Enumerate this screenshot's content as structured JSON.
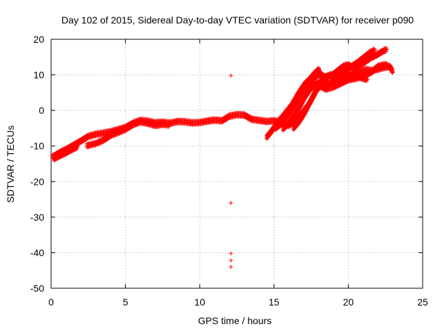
{
  "chart_data": {
    "type": "scatter",
    "title": "Day 102 of 2015, Sidereal Day-to-day VTEC variation (SDTVAR) for receiver p090",
    "xlabel": "GPS time / hours",
    "ylabel": "SDTVAR / TECUs",
    "xlim": [
      0,
      25
    ],
    "ylim": [
      -50,
      20
    ],
    "xticks": [
      0,
      5,
      10,
      15,
      20,
      25
    ],
    "yticks": [
      -50,
      -40,
      -30,
      -20,
      -10,
      0,
      10,
      20
    ],
    "grid": true,
    "marker": "+",
    "color": "#ff0000",
    "tracks": [
      [
        [
          0.1,
          -13.0
        ],
        [
          0.3,
          -12.6
        ],
        [
          0.6,
          -11.8
        ],
        [
          1.0,
          -11.0
        ],
        [
          1.5,
          -9.8
        ],
        [
          2.0,
          -8.6
        ],
        [
          2.5,
          -7.3
        ],
        [
          3.0,
          -6.7
        ],
        [
          3.5,
          -6.4
        ],
        [
          4.0,
          -6.0
        ],
        [
          4.5,
          -5.4
        ],
        [
          5.0,
          -4.8
        ],
        [
          5.5,
          -3.6
        ],
        [
          6.0,
          -2.8
        ],
        [
          6.5,
          -3.0
        ],
        [
          7.0,
          -3.5
        ],
        [
          7.5,
          -3.3
        ],
        [
          8.0,
          -3.6
        ],
        [
          8.5,
          -3.1
        ],
        [
          9.0,
          -3.2
        ],
        [
          9.5,
          -3.5
        ],
        [
          10.0,
          -3.4
        ],
        [
          10.5,
          -3.0
        ],
        [
          11.0,
          -2.7
        ],
        [
          11.5,
          -2.9
        ],
        [
          12.0,
          -1.6
        ],
        [
          12.5,
          -1.2
        ],
        [
          13.0,
          -1.3
        ],
        [
          13.5,
          -2.5
        ],
        [
          14.0,
          -2.8
        ],
        [
          14.5,
          -3.1
        ],
        [
          15.0,
          -2.9
        ],
        [
          15.5,
          -3.4
        ],
        [
          16.0,
          -4.3
        ]
      ],
      [
        [
          0.2,
          -13.6
        ],
        [
          0.5,
          -12.9
        ],
        [
          0.9,
          -12.1
        ],
        [
          1.3,
          -11.2
        ],
        [
          1.8,
          -10.2
        ]
      ],
      [
        [
          2.4,
          -9.9
        ],
        [
          3.0,
          -9.3
        ],
        [
          3.5,
          -8.4
        ],
        [
          4.0,
          -7.0
        ],
        [
          4.5,
          -6.2
        ],
        [
          5.0,
          -5.3
        ],
        [
          5.5,
          -4.0
        ],
        [
          6.0,
          -3.2
        ],
        [
          6.5,
          -3.6
        ],
        [
          7.0,
          -4.2
        ],
        [
          7.5,
          -3.9
        ],
        [
          8.0,
          -4.1
        ]
      ],
      [
        [
          14.5,
          -7.5
        ],
        [
          14.8,
          -6.0
        ],
        [
          15.0,
          -4.8
        ],
        [
          15.3,
          -3.0
        ],
        [
          15.6,
          -1.6
        ],
        [
          15.9,
          0.0
        ],
        [
          16.2,
          1.6
        ],
        [
          16.5,
          3.8
        ],
        [
          16.8,
          5.8
        ],
        [
          17.1,
          7.6
        ],
        [
          17.4,
          8.8
        ],
        [
          17.7,
          10.3
        ],
        [
          18.0,
          11.5
        ],
        [
          18.3,
          8.0
        ],
        [
          18.7,
          7.4
        ],
        [
          19.1,
          8.7
        ],
        [
          19.5,
          9.3
        ],
        [
          19.9,
          10.0
        ],
        [
          20.2,
          9.1
        ],
        [
          20.6,
          9.6
        ],
        [
          21.0,
          9.0
        ],
        [
          21.3,
          8.7
        ]
      ],
      [
        [
          15.1,
          -5.0
        ],
        [
          15.4,
          -4.0
        ],
        [
          15.7,
          -2.6
        ],
        [
          16.0,
          -0.8
        ],
        [
          16.3,
          1.0
        ],
        [
          16.6,
          2.8
        ],
        [
          16.9,
          5.0
        ],
        [
          17.2,
          6.6
        ],
        [
          17.5,
          8.2
        ],
        [
          17.8,
          9.5
        ],
        [
          18.1,
          10.2
        ],
        [
          18.5,
          9.2
        ],
        [
          18.9,
          9.9
        ],
        [
          19.3,
          11.2
        ],
        [
          19.7,
          12.5
        ],
        [
          20.0,
          12.8
        ],
        [
          20.3,
          12.0
        ],
        [
          20.7,
          12.6
        ],
        [
          21.1,
          13.6
        ],
        [
          21.5,
          14.8
        ],
        [
          21.9,
          15.6
        ],
        [
          22.3,
          16.6
        ],
        [
          22.6,
          17.2
        ]
      ],
      [
        [
          15.6,
          -5.2
        ],
        [
          15.9,
          -4.0
        ],
        [
          16.2,
          -2.2
        ],
        [
          16.5,
          -0.4
        ],
        [
          16.8,
          1.6
        ],
        [
          17.1,
          4.0
        ],
        [
          17.4,
          5.8
        ],
        [
          17.7,
          7.0
        ],
        [
          18.0,
          7.8
        ],
        [
          18.4,
          6.6
        ],
        [
          18.8,
          7.4
        ],
        [
          19.2,
          9.0
        ],
        [
          19.6,
          10.4
        ],
        [
          20.0,
          11.6
        ],
        [
          20.3,
          12.6
        ],
        [
          20.6,
          13.4
        ],
        [
          20.9,
          14.4
        ],
        [
          21.2,
          15.4
        ],
        [
          21.5,
          16.4
        ],
        [
          21.8,
          17.0
        ]
      ],
      [
        [
          16.0,
          -4.2
        ],
        [
          16.3,
          -3.2
        ],
        [
          16.6,
          -2.0
        ],
        [
          16.9,
          -0.6
        ],
        [
          17.2,
          1.0
        ],
        [
          17.5,
          2.8
        ],
        [
          17.8,
          5.2
        ],
        [
          18.1,
          7.6
        ],
        [
          18.4,
          9.3
        ],
        [
          18.8,
          10.0
        ],
        [
          19.2,
          9.6
        ],
        [
          19.7,
          9.3
        ],
        [
          20.2,
          10.1
        ],
        [
          20.7,
          11.0
        ],
        [
          21.2,
          11.5
        ],
        [
          21.6,
          11.2
        ],
        [
          22.0,
          11.6
        ],
        [
          22.4,
          12.1
        ],
        [
          22.8,
          12.3
        ],
        [
          23.0,
          10.8
        ]
      ],
      [
        [
          16.3,
          -5.0
        ],
        [
          16.6,
          -3.6
        ],
        [
          16.9,
          -1.8
        ],
        [
          17.2,
          0.4
        ],
        [
          17.5,
          3.0
        ],
        [
          17.8,
          5.4
        ],
        [
          18.1,
          6.8
        ],
        [
          18.5,
          6.0
        ],
        [
          19.0,
          6.6
        ],
        [
          19.5,
          7.6
        ],
        [
          20.0,
          8.6
        ],
        [
          20.5,
          9.0
        ],
        [
          21.0,
          9.8
        ],
        [
          21.5,
          10.6
        ],
        [
          22.0,
          12.4
        ],
        [
          22.5,
          12.9
        ],
        [
          22.9,
          11.8
        ]
      ]
    ],
    "outliers": [
      [
        12.1,
        9.8
      ],
      [
        12.1,
        -26.0
      ],
      [
        12.1,
        -40.2
      ],
      [
        12.1,
        -42.2
      ],
      [
        12.1,
        -44.0
      ]
    ]
  }
}
